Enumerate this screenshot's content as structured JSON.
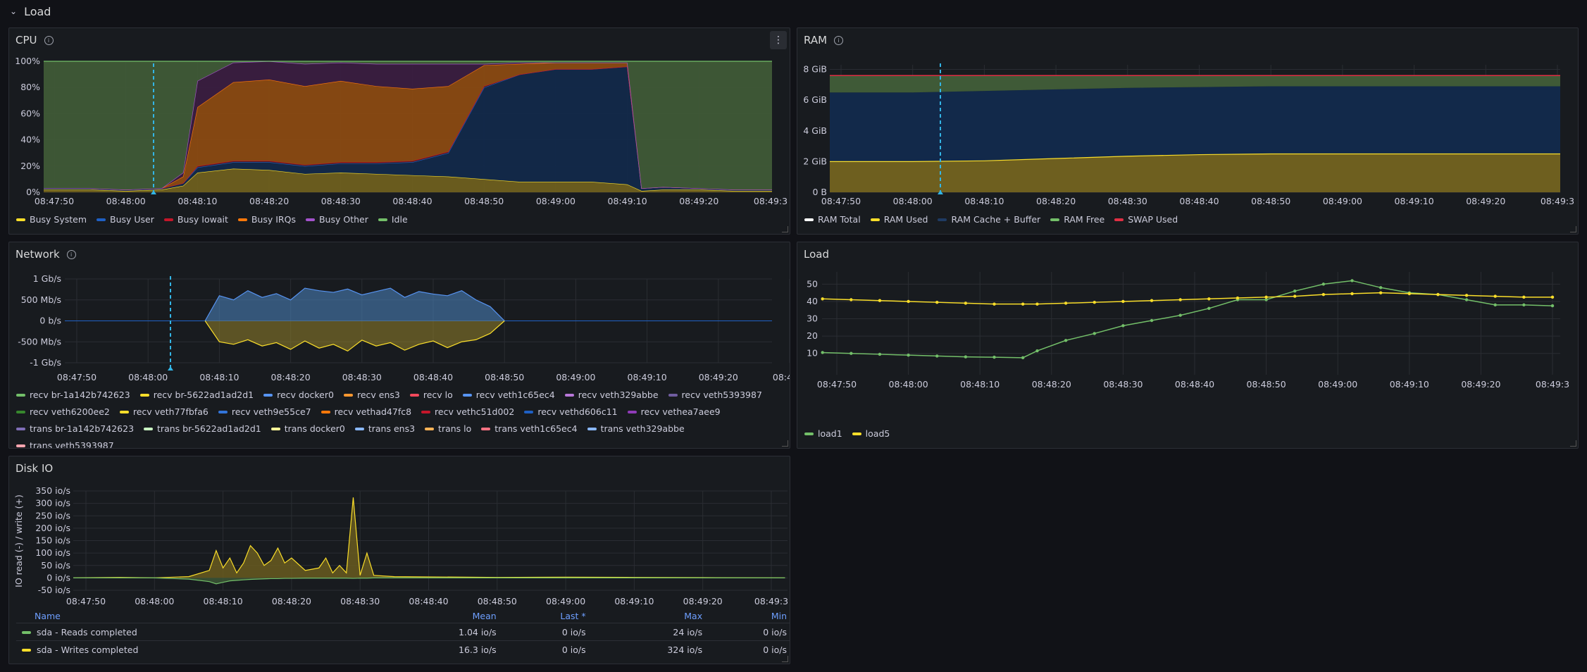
{
  "row": {
    "title": "Load"
  },
  "cpu": {
    "title": "CPU",
    "yticks": [
      "100%",
      "80%",
      "60%",
      "40%",
      "20%",
      "0%"
    ],
    "xticks": [
      "08:47:50",
      "08:48:00",
      "08:48:10",
      "08:48:20",
      "08:48:30",
      "08:48:40",
      "08:48:50",
      "08:49:00",
      "08:49:10",
      "08:49:20",
      "08:49:3"
    ],
    "legend": [
      {
        "name": "Busy System",
        "color": "#fade2a"
      },
      {
        "name": "Busy User",
        "color": "#1f60c4"
      },
      {
        "name": "Busy Iowait",
        "color": "#c4162a"
      },
      {
        "name": "Busy IRQs",
        "color": "#ff780a"
      },
      {
        "name": "Busy Other",
        "color": "#a352cc"
      },
      {
        "name": "Idle",
        "color": "#73bf69"
      }
    ]
  },
  "ram": {
    "title": "RAM",
    "yticks": [
      "8 GiB",
      "6 GiB",
      "4 GiB",
      "2 GiB",
      "0 B"
    ],
    "xticks": [
      "08:47:50",
      "08:48:00",
      "08:48:10",
      "08:48:20",
      "08:48:30",
      "08:48:40",
      "08:48:50",
      "08:49:00",
      "08:49:10",
      "08:49:20",
      "08:49:3"
    ],
    "legend": [
      {
        "name": "RAM Total",
        "color": "#ffffff"
      },
      {
        "name": "RAM Used",
        "color": "#fade2a"
      },
      {
        "name": "RAM Cache + Buffer",
        "color": "#1f3b63"
      },
      {
        "name": "RAM Free",
        "color": "#73bf69"
      },
      {
        "name": "SWAP Used",
        "color": "#e02f44"
      }
    ]
  },
  "network": {
    "title": "Network",
    "yticks": [
      "1 Gb/s",
      "500 Mb/s",
      "0 b/s",
      "-500 Mb/s",
      "-1 Gb/s"
    ],
    "xticks": [
      "08:47:50",
      "08:48:00",
      "08:48:10",
      "08:48:20",
      "08:48:30",
      "08:48:40",
      "08:48:50",
      "08:49:00",
      "08:49:10",
      "08:49:20",
      "08:49:3"
    ],
    "legend": [
      {
        "name": "recv br-1a142b742623",
        "color": "#73bf69"
      },
      {
        "name": "recv br-5622ad1ad2d1",
        "color": "#fade2a"
      },
      {
        "name": "recv docker0",
        "color": "#5794f2"
      },
      {
        "name": "recv ens3",
        "color": "#ff9830"
      },
      {
        "name": "recv lo",
        "color": "#f2495c"
      },
      {
        "name": "recv veth1c65ec4",
        "color": "#5794f2"
      },
      {
        "name": "recv veth329abbe",
        "color": "#b877d9"
      },
      {
        "name": "recv veth5393987",
        "color": "#705da0"
      },
      {
        "name": "recv veth6200ee2",
        "color": "#37872d"
      },
      {
        "name": "recv veth77fbfa6",
        "color": "#fade2a"
      },
      {
        "name": "recv veth9e55ce7",
        "color": "#3274d9"
      },
      {
        "name": "recv vethad47fc8",
        "color": "#ff780a"
      },
      {
        "name": "recv vethc51d002",
        "color": "#c4162a"
      },
      {
        "name": "recv vethd606c11",
        "color": "#1f60c4"
      },
      {
        "name": "recv vethea7aee9",
        "color": "#8f3bb8"
      },
      {
        "name": "trans br-1a142b742623",
        "color": "#806eb7"
      },
      {
        "name": "trans br-5622ad1ad2d1",
        "color": "#c8f2c2"
      },
      {
        "name": "trans docker0",
        "color": "#fff899"
      },
      {
        "name": "trans ens3",
        "color": "#8ab8ff"
      },
      {
        "name": "trans lo",
        "color": "#ffb357"
      },
      {
        "name": "trans veth1c65ec4",
        "color": "#ff7383"
      },
      {
        "name": "trans veth329abbe",
        "color": "#8ab8ff"
      },
      {
        "name": "trans veth5393987",
        "color": "#ffa6b0"
      }
    ]
  },
  "load": {
    "title": "Load",
    "yticks": [
      "50",
      "40",
      "30",
      "20",
      "10"
    ],
    "xticks": [
      "08:47:50",
      "08:48:00",
      "08:48:10",
      "08:48:20",
      "08:48:30",
      "08:48:40",
      "08:48:50",
      "08:49:00",
      "08:49:10",
      "08:49:20",
      "08:49:3"
    ],
    "legend": [
      {
        "name": "load1",
        "color": "#73bf69"
      },
      {
        "name": "load5",
        "color": "#fade2a"
      }
    ]
  },
  "disk": {
    "title": "Disk IO",
    "ylabel": "IO read (-) / write (+)",
    "yticks": [
      "350 io/s",
      "300 io/s",
      "250 io/s",
      "200 io/s",
      "150 io/s",
      "100 io/s",
      "50 io/s",
      "0 io/s",
      "-50 io/s"
    ],
    "xticks": [
      "08:47:50",
      "08:48:00",
      "08:48:10",
      "08:48:20",
      "08:48:30",
      "08:48:40",
      "08:48:50",
      "08:49:00",
      "08:49:10",
      "08:49:20",
      "08:49:3"
    ],
    "table": {
      "headers": [
        "Name",
        "Mean",
        "Last *",
        "Max",
        "Min"
      ],
      "rows": [
        {
          "name": "sda - Reads completed",
          "color": "#73bf69",
          "mean": "1.04 io/s",
          "last": "0 io/s",
          "max": "24 io/s",
          "min": "0 io/s"
        },
        {
          "name": "sda - Writes completed",
          "color": "#fade2a",
          "mean": "16.3 io/s",
          "last": "0 io/s",
          "max": "324 io/s",
          "min": "0 io/s"
        }
      ]
    }
  },
  "chart_data": [
    {
      "type": "area",
      "title": "CPU",
      "stacked": true,
      "unit": "%",
      "ylim": [
        0,
        100
      ],
      "x": [
        "08:47:45",
        "08:47:55",
        "08:48:00",
        "08:48:05",
        "08:48:08",
        "08:48:10",
        "08:48:15",
        "08:48:20",
        "08:48:25",
        "08:48:30",
        "08:48:35",
        "08:48:40",
        "08:48:45",
        "08:48:50",
        "08:48:55",
        "08:49:00",
        "08:49:05",
        "08:49:10",
        "08:49:12",
        "08:49:15",
        "08:49:20",
        "08:49:25",
        "08:49:32"
      ],
      "series": [
        {
          "name": "Busy System",
          "values": [
            2,
            2,
            1,
            2,
            5,
            15,
            18,
            17,
            14,
            15,
            14,
            13,
            12,
            10,
            8,
            8,
            8,
            6,
            1,
            2,
            2,
            1,
            1
          ]
        },
        {
          "name": "Busy User",
          "values": [
            1,
            1,
            1,
            1,
            2,
            4,
            5,
            6,
            6,
            7,
            8,
            10,
            18,
            70,
            82,
            86,
            86,
            90,
            2,
            2,
            1,
            1,
            1
          ]
        },
        {
          "name": "Busy Iowait",
          "values": [
            0,
            0,
            0,
            0,
            0,
            1,
            1,
            1,
            1,
            1,
            1,
            1,
            1,
            1,
            0,
            0,
            0,
            0,
            0,
            0,
            0,
            0,
            0
          ]
        },
        {
          "name": "Busy IRQs",
          "values": [
            0,
            0,
            0,
            0,
            5,
            45,
            60,
            62,
            60,
            62,
            58,
            55,
            50,
            16,
            8,
            5,
            5,
            3,
            0,
            0,
            0,
            0,
            0
          ]
        },
        {
          "name": "Busy Other",
          "values": [
            0,
            0,
            0,
            0,
            3,
            20,
            15,
            14,
            17,
            14,
            17,
            19,
            17,
            1,
            1,
            0,
            0,
            0,
            0,
            0,
            0,
            0,
            0
          ]
        },
        {
          "name": "Idle",
          "values": [
            97,
            97,
            98,
            97,
            85,
            15,
            1,
            0,
            2,
            1,
            2,
            2,
            2,
            2,
            1,
            1,
            1,
            1,
            97,
            96,
            97,
            98,
            98
          ]
        }
      ]
    },
    {
      "type": "area",
      "title": "RAM",
      "unit": "GiB",
      "ylim": [
        0,
        8.3
      ],
      "x": [
        "08:47:45",
        "08:48:00",
        "08:48:10",
        "08:48:20",
        "08:48:30",
        "08:48:40",
        "08:48:50",
        "08:49:00",
        "08:49:10",
        "08:49:20",
        "08:49:32"
      ],
      "series": [
        {
          "name": "RAM Total",
          "values": [
            7.6,
            7.6,
            7.6,
            7.6,
            7.6,
            7.6,
            7.6,
            7.6,
            7.6,
            7.6,
            7.6
          ]
        },
        {
          "name": "RAM Used",
          "values": [
            2.0,
            2.0,
            2.05,
            2.2,
            2.35,
            2.45,
            2.5,
            2.5,
            2.5,
            2.5,
            2.5
          ]
        },
        {
          "name": "RAM Cache + Buffer",
          "values": [
            4.5,
            4.5,
            4.55,
            4.5,
            4.45,
            4.4,
            4.4,
            4.4,
            4.4,
            4.4,
            4.4
          ]
        },
        {
          "name": "RAM Free",
          "values": [
            1.1,
            1.1,
            1.0,
            0.9,
            0.8,
            0.75,
            0.7,
            0.7,
            0.7,
            0.7,
            0.7
          ]
        },
        {
          "name": "SWAP Used",
          "values": [
            0,
            0,
            0,
            0,
            0,
            0,
            0,
            0,
            0,
            0,
            0
          ]
        }
      ]
    },
    {
      "type": "area",
      "title": "Network",
      "unit": "Mb/s",
      "ylim": [
        -1000,
        1000
      ],
      "x": [
        "08:48:08",
        "08:48:10",
        "08:48:12",
        "08:48:14",
        "08:48:16",
        "08:48:18",
        "08:48:20",
        "08:48:22",
        "08:48:24",
        "08:48:26",
        "08:48:28",
        "08:48:30",
        "08:48:32",
        "08:48:34",
        "08:48:36",
        "08:48:38",
        "08:48:40",
        "08:48:42",
        "08:48:44",
        "08:48:46",
        "08:48:48",
        "08:48:50"
      ],
      "series": [
        {
          "name": "recv docker0",
          "values": [
            0,
            600,
            500,
            720,
            560,
            650,
            500,
            780,
            720,
            680,
            760,
            620,
            700,
            780,
            560,
            700,
            640,
            600,
            720,
            500,
            340,
            0
          ]
        },
        {
          "name": "recv br-5622ad1ad2d1",
          "values": [
            0,
            -500,
            -560,
            -450,
            -600,
            -520,
            -680,
            -480,
            -650,
            -560,
            -720,
            -460,
            -600,
            -520,
            -700,
            -560,
            -480,
            -640,
            -500,
            -450,
            -300,
            0
          ]
        }
      ]
    },
    {
      "type": "line",
      "title": "Load",
      "ylim": [
        5,
        55
      ],
      "x": [
        "08:47:48",
        "08:47:52",
        "08:47:56",
        "08:48:00",
        "08:48:04",
        "08:48:08",
        "08:48:12",
        "08:48:16",
        "08:48:18",
        "08:48:22",
        "08:48:26",
        "08:48:30",
        "08:48:34",
        "08:48:38",
        "08:48:42",
        "08:48:46",
        "08:48:50",
        "08:48:54",
        "08:48:58",
        "08:49:02",
        "08:49:06",
        "08:49:10",
        "08:49:14",
        "08:49:18",
        "08:49:22",
        "08:49:26",
        "08:49:30"
      ],
      "series": [
        {
          "name": "load1",
          "values": [
            10.5,
            10,
            9.5,
            9,
            8.5,
            8,
            7.8,
            7.5,
            11.5,
            17.5,
            21.5,
            26,
            29,
            32,
            36,
            41,
            41,
            46,
            50,
            52,
            48,
            45,
            44,
            41,
            38,
            38,
            37.5
          ]
        },
        {
          "name": "load5",
          "values": [
            41.5,
            41,
            40.5,
            40,
            39.5,
            39,
            38.5,
            38.5,
            38.5,
            39,
            39.5,
            40,
            40.5,
            41,
            41.5,
            42,
            42.5,
            43,
            44,
            44.5,
            45,
            44.5,
            44,
            43.5,
            43,
            42.5,
            42.5
          ]
        }
      ]
    },
    {
      "type": "line",
      "title": "Disk IO",
      "unit": "io/s",
      "ylim": [
        -50,
        350
      ],
      "x": [
        "08:47:48",
        "08:47:55",
        "08:48:00",
        "08:48:05",
        "08:48:08",
        "08:48:09",
        "08:48:10",
        "08:48:11",
        "08:48:12",
        "08:48:13",
        "08:48:14",
        "08:48:15",
        "08:48:16",
        "08:48:17",
        "08:48:18",
        "08:48:19",
        "08:48:20",
        "08:48:22",
        "08:48:24",
        "08:48:25",
        "08:48:26",
        "08:48:27",
        "08:48:28",
        "08:48:29",
        "08:48:30",
        "08:48:31",
        "08:48:32",
        "08:48:35",
        "08:48:50",
        "08:49:00",
        "08:49:10",
        "08:49:20",
        "08:49:32"
      ],
      "series": [
        {
          "name": "sda - Writes completed",
          "values": [
            0,
            2,
            0,
            5,
            30,
            110,
            40,
            80,
            20,
            60,
            130,
            100,
            50,
            70,
            120,
            60,
            80,
            30,
            40,
            80,
            20,
            50,
            20,
            324,
            10,
            100,
            10,
            5,
            2,
            3,
            2,
            1,
            0
          ]
        },
        {
          "name": "sda - Reads completed",
          "values": [
            0,
            0,
            0,
            -5,
            -15,
            -24,
            -18,
            -12,
            -10,
            -8,
            -6,
            -5,
            -4,
            -3,
            -3,
            -2,
            -2,
            -1,
            -1,
            -1,
            -1,
            -1,
            -1,
            -2,
            -1,
            -1,
            0,
            0,
            0,
            0,
            0,
            0,
            0
          ]
        }
      ]
    }
  ]
}
